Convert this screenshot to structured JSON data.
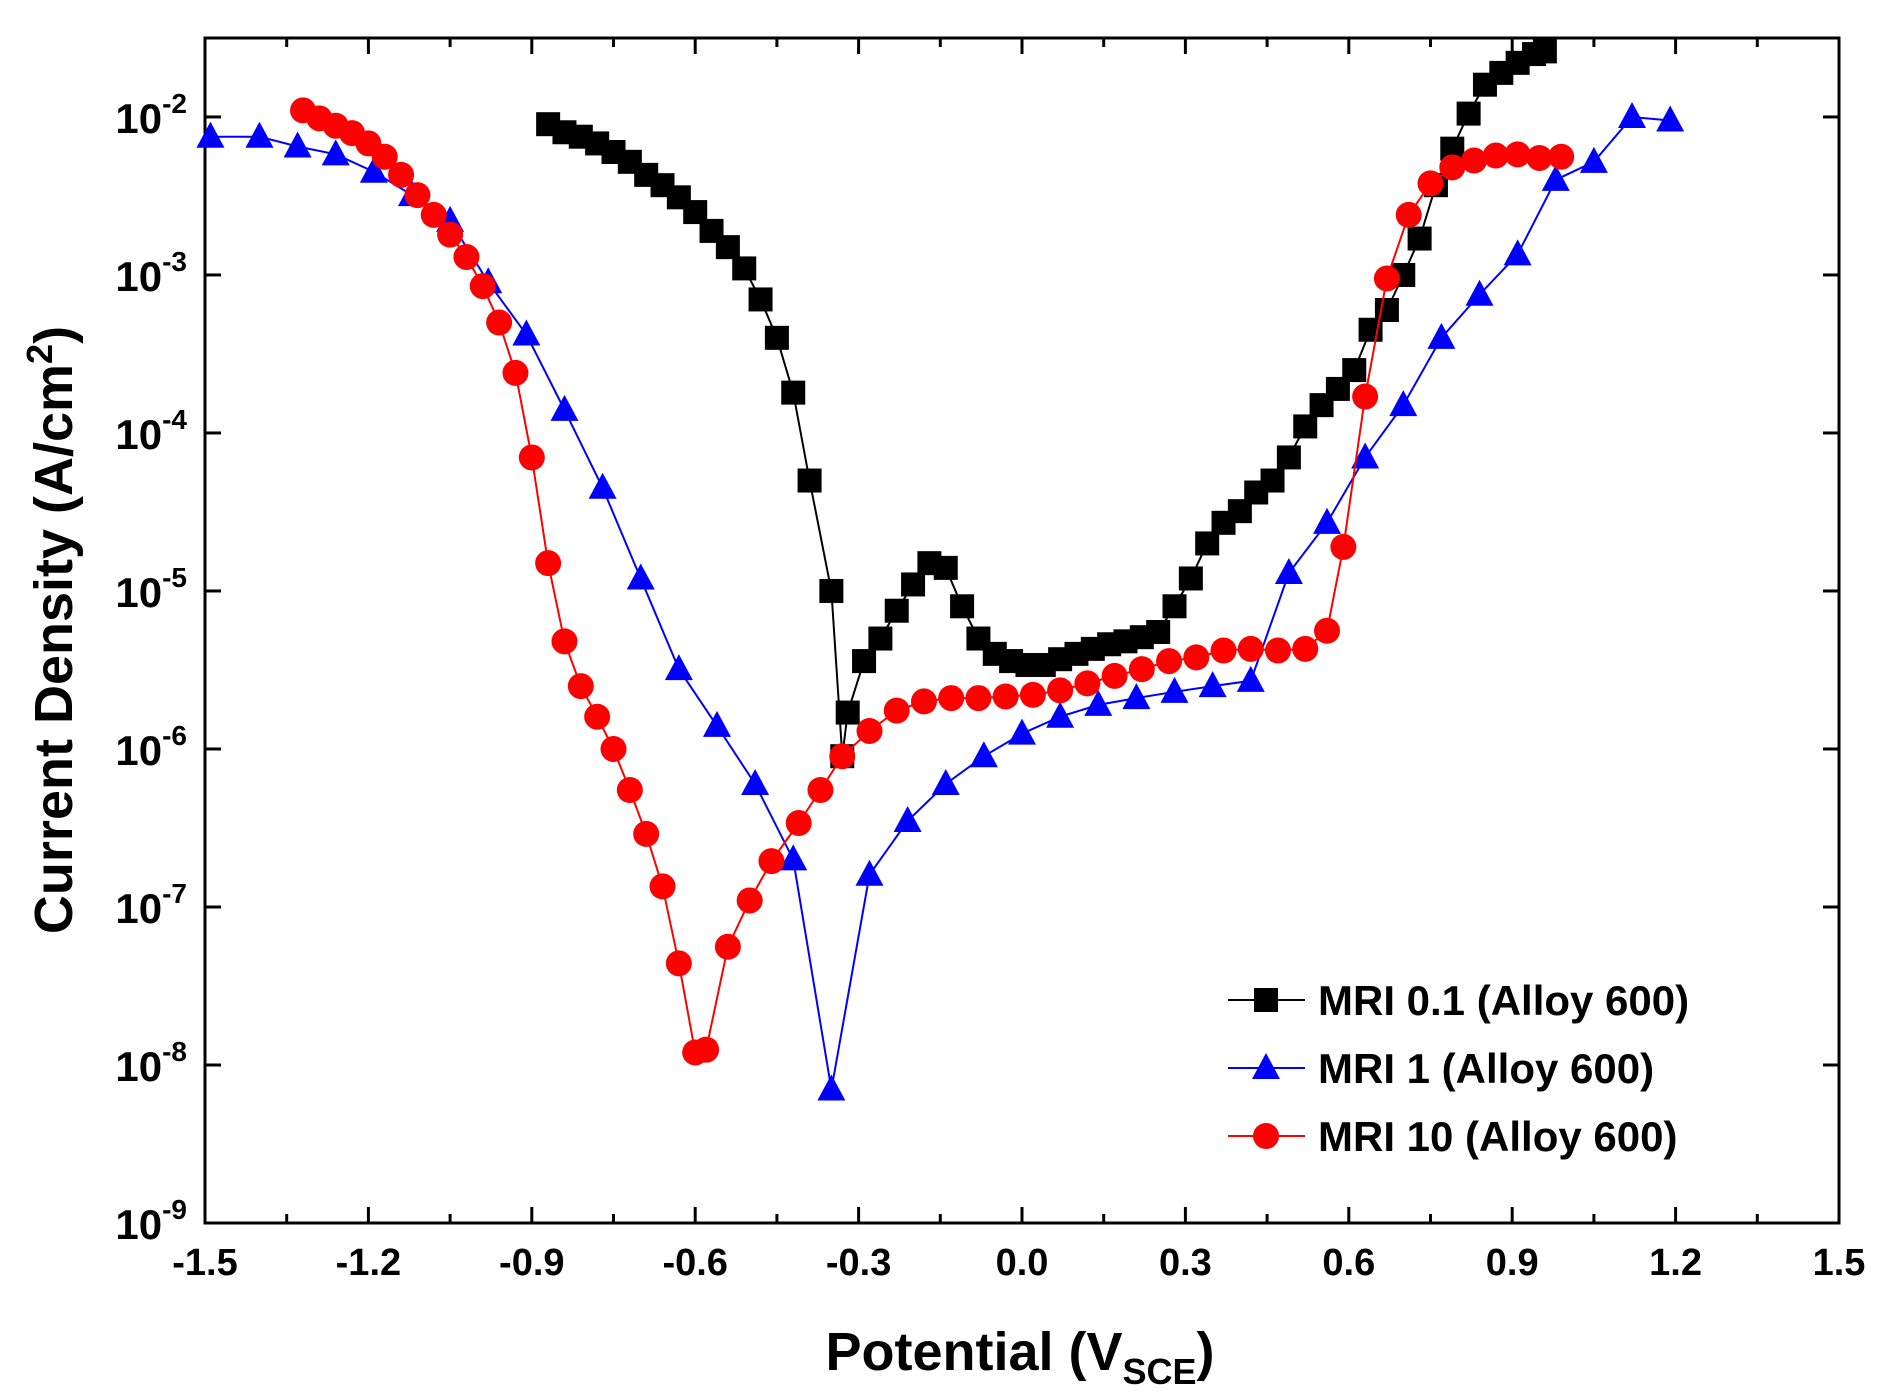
{
  "chart_data": {
    "type": "scatter",
    "title": "",
    "xlabel": {
      "main": "Potential (V",
      "sub": "SCE",
      "tail": ")"
    },
    "ylabel": {
      "main": "Current Density (A/cm",
      "sup": "2",
      "tail": ")"
    },
    "xscale": "linear",
    "yscale": "log",
    "xlim": [
      -1.5,
      1.5
    ],
    "ylim": [
      1e-09,
      0.0316
    ],
    "grid": false,
    "legend_position": "bottom-right",
    "x_ticks": [
      {
        "v": -1.5,
        "label": "-1.5"
      },
      {
        "v": -1.2,
        "label": "-1.2"
      },
      {
        "v": -0.9,
        "label": "-0.9"
      },
      {
        "v": -0.6,
        "label": "-0.6"
      },
      {
        "v": -0.3,
        "label": "-0.3"
      },
      {
        "v": 0.0,
        "label": "0.0"
      },
      {
        "v": 0.3,
        "label": "0.3"
      },
      {
        "v": 0.6,
        "label": "0.6"
      },
      {
        "v": 0.9,
        "label": "0.9"
      },
      {
        "v": 1.2,
        "label": "1.2"
      },
      {
        "v": 1.5,
        "label": "1.5"
      }
    ],
    "y_ticks": [
      {
        "exp": -9,
        "base": "10",
        "sup": "-9"
      },
      {
        "exp": -8,
        "base": "10",
        "sup": "-8"
      },
      {
        "exp": -7,
        "base": "10",
        "sup": "-7"
      },
      {
        "exp": -6,
        "base": "10",
        "sup": "-6"
      },
      {
        "exp": -5,
        "base": "10",
        "sup": "-5"
      },
      {
        "exp": -4,
        "base": "10",
        "sup": "-4"
      },
      {
        "exp": -3,
        "base": "10",
        "sup": "-3"
      },
      {
        "exp": -2,
        "base": "10",
        "sup": "-2"
      }
    ],
    "series": [
      {
        "name": "MRI 0.1 (Alloy 600)",
        "color": "#000000",
        "marker": "square",
        "points": [
          [
            -0.87,
            0.009
          ],
          [
            -0.84,
            0.008
          ],
          [
            -0.81,
            0.0075
          ],
          [
            -0.78,
            0.0068
          ],
          [
            -0.75,
            0.006
          ],
          [
            -0.72,
            0.0052
          ],
          [
            -0.69,
            0.0043
          ],
          [
            -0.66,
            0.0037
          ],
          [
            -0.63,
            0.0031
          ],
          [
            -0.6,
            0.0025
          ],
          [
            -0.57,
            0.0019
          ],
          [
            -0.54,
            0.0015
          ],
          [
            -0.51,
            0.0011
          ],
          [
            -0.48,
            0.0007
          ],
          [
            -0.45,
            0.0004
          ],
          [
            -0.42,
            0.00018
          ],
          [
            -0.39,
            5e-05
          ],
          [
            -0.35,
            1e-05
          ],
          [
            -0.32,
            1.7e-06
          ],
          [
            -0.33,
            9e-07
          ],
          [
            -0.29,
            3.6e-06
          ],
          [
            -0.26,
            5e-06
          ],
          [
            -0.23,
            7.5e-06
          ],
          [
            -0.2,
            1.1e-05
          ],
          [
            -0.17,
            1.5e-05
          ],
          [
            -0.14,
            1.4e-05
          ],
          [
            -0.11,
            8e-06
          ],
          [
            -0.08,
            5e-06
          ],
          [
            -0.05,
            4e-06
          ],
          [
            -0.02,
            3.6e-06
          ],
          [
            0.01,
            3.4e-06
          ],
          [
            0.04,
            3.4e-06
          ],
          [
            0.07,
            3.7e-06
          ],
          [
            0.1,
            4e-06
          ],
          [
            0.13,
            4.3e-06
          ],
          [
            0.16,
            4.6e-06
          ],
          [
            0.19,
            4.8e-06
          ],
          [
            0.22,
            5.1e-06
          ],
          [
            0.25,
            5.5e-06
          ],
          [
            0.28,
            8e-06
          ],
          [
            0.31,
            1.2e-05
          ],
          [
            0.34,
            2e-05
          ],
          [
            0.37,
            2.7e-05
          ],
          [
            0.4,
            3.2e-05
          ],
          [
            0.43,
            4.2e-05
          ],
          [
            0.46,
            5e-05
          ],
          [
            0.49,
            7e-05
          ],
          [
            0.52,
            0.00011
          ],
          [
            0.55,
            0.00015
          ],
          [
            0.58,
            0.00019
          ],
          [
            0.61,
            0.00025
          ],
          [
            0.64,
            0.00045
          ],
          [
            0.67,
            0.0006
          ],
          [
            0.7,
            0.001
          ],
          [
            0.73,
            0.0017
          ],
          [
            0.76,
            0.0037
          ],
          [
            0.79,
            0.0063
          ],
          [
            0.82,
            0.0105
          ],
          [
            0.85,
            0.016
          ],
          [
            0.88,
            0.019
          ],
          [
            0.91,
            0.022
          ],
          [
            0.94,
            0.025
          ],
          [
            0.96,
            0.026
          ]
        ]
      },
      {
        "name": "MRI 1    (Alloy 600)",
        "color": "#0000ff",
        "marker": "triangle",
        "points": [
          [
            -1.49,
            0.0075
          ],
          [
            -1.4,
            0.0075
          ],
          [
            -1.33,
            0.0065
          ],
          [
            -1.26,
            0.0058
          ],
          [
            -1.19,
            0.0045
          ],
          [
            -1.12,
            0.0032
          ],
          [
            -1.05,
            0.0022
          ],
          [
            -0.98,
            0.0009
          ],
          [
            -0.91,
            0.00042
          ],
          [
            -0.84,
            0.00014
          ],
          [
            -0.77,
            4.5e-05
          ],
          [
            -0.7,
            1.2e-05
          ],
          [
            -0.63,
            3.2e-06
          ],
          [
            -0.56,
            1.4e-06
          ],
          [
            -0.49,
            6e-07
          ],
          [
            -0.42,
            2e-07
          ],
          [
            -0.35,
            7e-09
          ],
          [
            -0.28,
            1.6e-07
          ],
          [
            -0.21,
            3.5e-07
          ],
          [
            -0.14,
            6e-07
          ],
          [
            -0.07,
            9e-07
          ],
          [
            0.0,
            1.25e-06
          ],
          [
            0.07,
            1.6e-06
          ],
          [
            0.14,
            1.9e-06
          ],
          [
            0.21,
            2.1e-06
          ],
          [
            0.28,
            2.3e-06
          ],
          [
            0.35,
            2.5e-06
          ],
          [
            0.42,
            2.7e-06
          ],
          [
            0.49,
            1.3e-05
          ],
          [
            0.56,
            2.7e-05
          ],
          [
            0.63,
            7e-05
          ],
          [
            0.7,
            0.00015
          ],
          [
            0.77,
            0.0004
          ],
          [
            0.84,
            0.00075
          ],
          [
            0.91,
            0.00135
          ],
          [
            0.98,
            0.004
          ],
          [
            1.05,
            0.0052
          ],
          [
            1.12,
            0.01
          ],
          [
            1.19,
            0.0095
          ]
        ]
      },
      {
        "name": "MRI 10  (Alloy 600)",
        "color": "#ff0000",
        "marker": "circle",
        "points": [
          [
            -1.32,
            0.011
          ],
          [
            -1.29,
            0.0098
          ],
          [
            -1.26,
            0.0088
          ],
          [
            -1.23,
            0.0079
          ],
          [
            -1.2,
            0.0068
          ],
          [
            -1.17,
            0.0056
          ],
          [
            -1.14,
            0.0043
          ],
          [
            -1.11,
            0.0032
          ],
          [
            -1.08,
            0.0024
          ],
          [
            -1.05,
            0.0018
          ],
          [
            -1.02,
            0.0013
          ],
          [
            -0.99,
            0.00085
          ],
          [
            -0.96,
            0.0005
          ],
          [
            -0.93,
            0.00024
          ],
          [
            -0.9,
            7e-05
          ],
          [
            -0.87,
            1.5e-05
          ],
          [
            -0.84,
            4.8e-06
          ],
          [
            -0.81,
            2.5e-06
          ],
          [
            -0.78,
            1.6e-06
          ],
          [
            -0.75,
            1e-06
          ],
          [
            -0.72,
            5.5e-07
          ],
          [
            -0.69,
            2.9e-07
          ],
          [
            -0.66,
            1.35e-07
          ],
          [
            -0.63,
            4.4e-08
          ],
          [
            -0.6,
            1.2e-08
          ],
          [
            -0.58,
            1.25e-08
          ],
          [
            -0.54,
            5.6e-08
          ],
          [
            -0.5,
            1.1e-07
          ],
          [
            -0.46,
            1.95e-07
          ],
          [
            -0.41,
            3.4e-07
          ],
          [
            -0.37,
            5.5e-07
          ],
          [
            -0.33,
            9e-07
          ],
          [
            -0.28,
            1.3e-06
          ],
          [
            -0.23,
            1.75e-06
          ],
          [
            -0.18,
            2e-06
          ],
          [
            -0.13,
            2.1e-06
          ],
          [
            -0.08,
            2.1e-06
          ],
          [
            -0.03,
            2.15e-06
          ],
          [
            0.02,
            2.2e-06
          ],
          [
            0.07,
            2.35e-06
          ],
          [
            0.12,
            2.6e-06
          ],
          [
            0.17,
            2.9e-06
          ],
          [
            0.22,
            3.2e-06
          ],
          [
            0.27,
            3.6e-06
          ],
          [
            0.32,
            3.8e-06
          ],
          [
            0.37,
            4.2e-06
          ],
          [
            0.42,
            4.3e-06
          ],
          [
            0.47,
            4.2e-06
          ],
          [
            0.52,
            4.3e-06
          ],
          [
            0.56,
            5.6e-06
          ],
          [
            0.59,
            1.9e-05
          ],
          [
            0.63,
            0.00017
          ],
          [
            0.67,
            0.00095
          ],
          [
            0.71,
            0.0024
          ],
          [
            0.75,
            0.0038
          ],
          [
            0.79,
            0.0048
          ],
          [
            0.83,
            0.0053
          ],
          [
            0.87,
            0.0057
          ],
          [
            0.91,
            0.0058
          ],
          [
            0.95,
            0.0055
          ],
          [
            0.99,
            0.0056
          ]
        ]
      }
    ]
  }
}
